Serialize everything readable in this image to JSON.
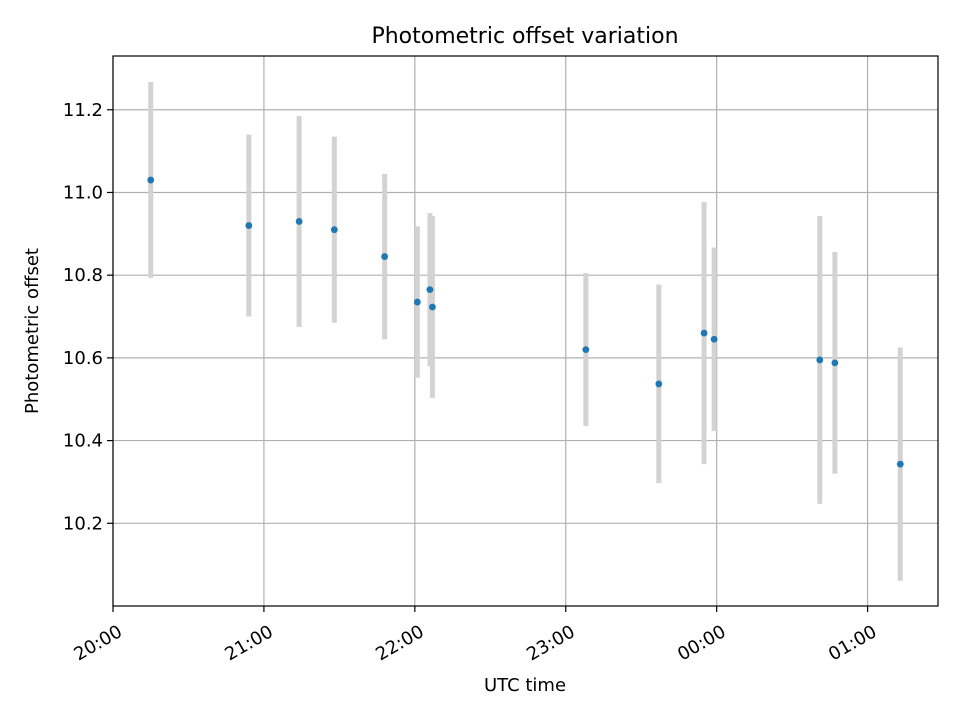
{
  "chart_data": {
    "type": "scatter",
    "title": "Photometric offset variation",
    "xlabel": "UTC time",
    "ylabel": "Photometric offset",
    "x_ticks": [
      "20:00",
      "21:00",
      "22:00",
      "23:00",
      "00:00",
      "01:00"
    ],
    "y_ticks": [
      "10.2",
      "10.4",
      "10.6",
      "10.8",
      "11.0",
      "11.2"
    ],
    "x_range": [
      "20:00",
      "01:28"
    ],
    "ylim": [
      10.0,
      11.33
    ],
    "grid": true,
    "colors": {
      "points": "#1f77b4",
      "error_bars": "#d3d3d3",
      "grid": "#b0b0b0"
    },
    "points": [
      {
        "x": "20:15",
        "y": 11.03,
        "yerr": 0.237
      },
      {
        "x": "20:54",
        "y": 10.92,
        "yerr": 0.22
      },
      {
        "x": "21:14",
        "y": 10.93,
        "yerr": 0.255
      },
      {
        "x": "21:28",
        "y": 10.91,
        "yerr": 0.225
      },
      {
        "x": "21:48",
        "y": 10.845,
        "yerr": 0.2
      },
      {
        "x": "22:01",
        "y": 10.735,
        "yerr": 0.183
      },
      {
        "x": "22:06",
        "y": 10.765,
        "yerr": 0.185
      },
      {
        "x": "22:07",
        "y": 10.723,
        "yerr": 0.22
      },
      {
        "x": "23:08",
        "y": 10.62,
        "yerr": 0.185
      },
      {
        "x": "23:37",
        "y": 10.537,
        "yerr": 0.24
      },
      {
        "x": "23:55",
        "y": 10.66,
        "yerr": 0.317
      },
      {
        "x": "23:59",
        "y": 10.645,
        "yerr": 0.222
      },
      {
        "x": "00:41",
        "y": 10.595,
        "yerr": 0.348
      },
      {
        "x": "00:47",
        "y": 10.588,
        "yerr": 0.268
      },
      {
        "x": "01:13",
        "y": 10.343,
        "yerr": 0.282
      }
    ]
  }
}
